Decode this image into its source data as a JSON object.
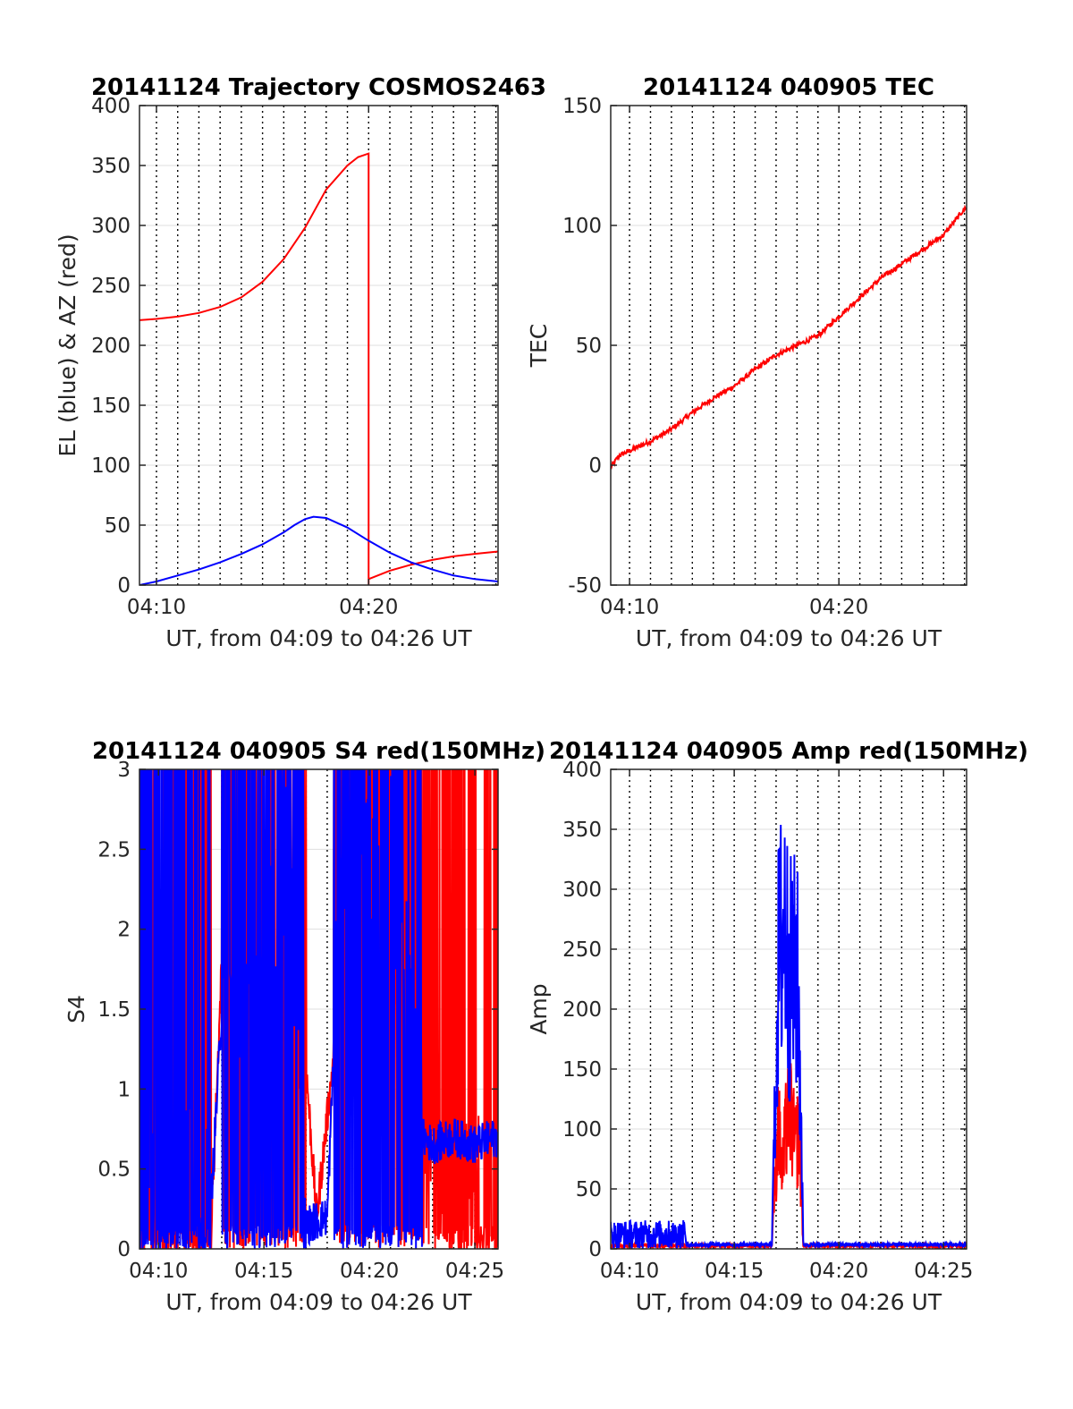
{
  "colors": {
    "az": "#ff0000",
    "el": "#0000ff",
    "tec": "#ff0000",
    "red": "#ff0000",
    "blue": "#0000ff"
  },
  "chart_data": [
    {
      "type": "line",
      "title": "20141124 Trajectory COSMOS2463",
      "xlabel": "UT, from 04:09 to 04:26 UT",
      "ylabel": "EL (blue) & AZ (red)",
      "xlim": [
        9.2,
        26.1
      ],
      "ylim": [
        0,
        400
      ],
      "xticks": [
        10,
        20
      ],
      "xtick_labels": [
        "04:10",
        "04:20"
      ],
      "yticks": [
        0,
        50,
        100,
        150,
        200,
        250,
        300,
        350,
        400
      ],
      "grid": true,
      "series": [
        {
          "color": "#ff0000",
          "x": [
            9.2,
            10,
            11,
            12,
            13,
            14,
            15,
            16,
            17,
            18,
            19,
            19.5,
            20.0,
            20.0,
            20.0,
            21,
            22,
            23,
            24,
            25,
            26.1
          ],
          "y": [
            221,
            222,
            224,
            227,
            232,
            240,
            253,
            272,
            298,
            330,
            350,
            357,
            360,
            0,
            5,
            12,
            17,
            21,
            24,
            26,
            28
          ]
        },
        {
          "color": "#0000ff",
          "x": [
            9.2,
            10,
            11,
            12,
            13,
            14,
            15,
            16,
            16.5,
            17,
            17.4,
            18,
            19,
            20,
            21,
            22,
            23,
            24,
            25,
            26.1
          ],
          "y": [
            0,
            3,
            8,
            13,
            19,
            26,
            34,
            44,
            50,
            55,
            57,
            56,
            48,
            37,
            27,
            19,
            13,
            8,
            5,
            3
          ]
        }
      ]
    },
    {
      "type": "line",
      "title": "20141124 040905 TEC",
      "xlabel": "UT, from 04:09 to 04:26 UT",
      "ylabel": "TEC",
      "xlim": [
        9.1,
        26.1
      ],
      "ylim": [
        -50,
        150
      ],
      "xticks": [
        10,
        20
      ],
      "xtick_labels": [
        "04:10",
        "04:20"
      ],
      "yticks": [
        -50,
        0,
        50,
        100,
        150
      ],
      "grid": true,
      "series": [
        {
          "color": "#ff0000",
          "x": [
            9.1,
            9.5,
            10,
            11,
            12,
            13,
            14,
            15,
            16,
            17,
            18,
            19,
            20,
            21,
            22,
            23,
            24,
            25,
            26.1
          ],
          "y": [
            -1,
            4,
            6,
            10,
            15,
            22,
            28,
            33,
            40,
            46,
            50,
            54,
            62,
            70,
            78,
            84,
            90,
            96,
            108
          ]
        }
      ]
    },
    {
      "type": "line",
      "title": "20141124 040905 S4 red(150MHz)",
      "xlabel": "UT, from 04:09 to 04:26 UT",
      "ylabel": "S4",
      "xlim": [
        9.1,
        26.1
      ],
      "ylim": [
        0,
        3
      ],
      "xticks": [
        10,
        15,
        20,
        25
      ],
      "xtick_labels": [
        "04:10",
        "04:15",
        "04:20",
        "04:25"
      ],
      "yticks": [
        0,
        0.5,
        1,
        1.5,
        2,
        2.5,
        3
      ],
      "grid": true,
      "series": [
        {
          "color": "#ff0000",
          "x": [
            9.1,
            12.5,
            13.0,
            15.5,
            16.0,
            16.8,
            17.5,
            18.3,
            18.8,
            19.5,
            20.5,
            22.5,
            23.5,
            26.1
          ],
          "y": [
            0.1,
            0.1,
            1.8,
            1.6,
            1.3,
            1.5,
            0.2,
            1.2,
            1.6,
            2.2,
            2.8,
            0.6,
            0.3,
            0.3
          ]
        },
        {
          "color": "#0000ff",
          "x": [
            9.1,
            12.5,
            13.0,
            14.0,
            15.0,
            16.0,
            16.8,
            17.0,
            18.0,
            18.3,
            19.0,
            20.0,
            21.0,
            22.5,
            23.0,
            24.0,
            25.0,
            26.1
          ],
          "y": [
            0.3,
            0.3,
            1.5,
            1.5,
            1.7,
            2.5,
            1.4,
            0.15,
            0.2,
            1.2,
            2.8,
            2.5,
            2.5,
            0.7,
            0.65,
            0.7,
            0.65,
            0.7
          ]
        }
      ]
    },
    {
      "type": "line",
      "title": "20141124 040905 Amp red(150MHz)",
      "xlabel": "UT, from 04:09 to 04:26 UT",
      "ylabel": "Amp",
      "xlim": [
        9.1,
        26.1
      ],
      "ylim": [
        0,
        400
      ],
      "xticks": [
        10,
        15,
        20,
        25
      ],
      "xtick_labels": [
        "04:10",
        "04:15",
        "04:20",
        "04:25"
      ],
      "yticks": [
        0,
        50,
        100,
        150,
        200,
        250,
        300,
        350,
        400
      ],
      "grid": true,
      "series": [
        {
          "color": "#ff0000",
          "x": [
            9.1,
            16.8,
            17.1,
            17.3,
            17.6,
            17.9,
            18.1,
            18.3,
            26.1
          ],
          "y": [
            1,
            1,
            140,
            80,
            170,
            110,
            130,
            1,
            1
          ]
        },
        {
          "color": "#0000ff",
          "x": [
            9.1,
            12.6,
            12.7,
            16.8,
            17.1,
            17.4,
            17.6,
            17.8,
            18.0,
            18.2,
            18.3,
            26.1
          ],
          "y": [
            22,
            22,
            2,
            2,
            310,
            370,
            300,
            300,
            310,
            150,
            2,
            2
          ]
        }
      ]
    }
  ]
}
